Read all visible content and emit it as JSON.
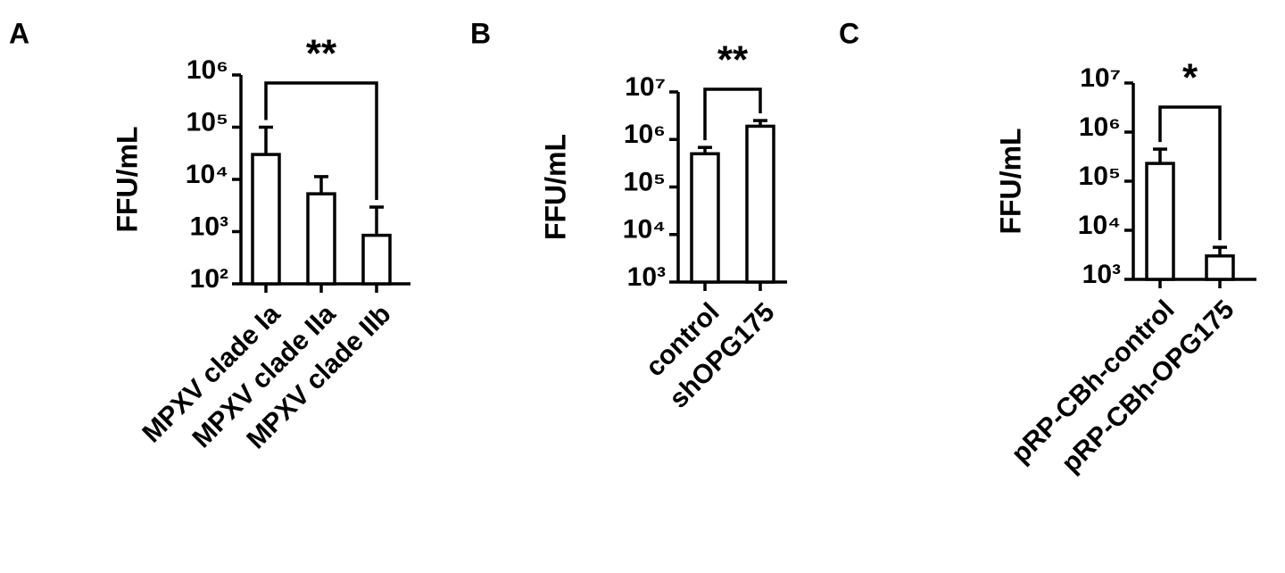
{
  "chart_data": [
    {
      "type": "bar",
      "panel": "A",
      "ylabel": "FFU/mL",
      "log_scale": true,
      "color": "#ffffff",
      "categories": [
        "MPXV clade Ia",
        "MPXV clade IIa",
        "MPXV clade IIb"
      ],
      "values": [
        30000,
        5300,
        850
      ],
      "errors": [
        70000,
        6000,
        2100
      ],
      "ylim": [
        100,
        1000000
      ],
      "yticks": [
        {
          "value": 100,
          "label": "10²"
        },
        {
          "value": 1000,
          "label": "10³"
        },
        {
          "value": 10000,
          "label": "10⁴"
        },
        {
          "value": 100000,
          "label": "10⁵"
        },
        {
          "value": 1000000,
          "label": "10⁶"
        }
      ],
      "bracket": {
        "label": "**",
        "categories": [
          0,
          2
        ]
      }
    },
    {
      "type": "bar",
      "panel": "B",
      "ylabel": "FFU/mL",
      "log_scale": true,
      "color": "#ffffff",
      "categories": [
        "control",
        "shOPG175"
      ],
      "values": [
        500000,
        1900000
      ],
      "errors": [
        180000,
        600000
      ],
      "ylim": [
        1000,
        10000000
      ],
      "yticks": [
        {
          "value": 1000,
          "label": "10³"
        },
        {
          "value": 10000,
          "label": "10⁴"
        },
        {
          "value": 100000,
          "label": "10⁵"
        },
        {
          "value": 1000000,
          "label": "10⁶"
        },
        {
          "value": 10000000,
          "label": "10⁷"
        }
      ],
      "bracket": {
        "label": "**",
        "categories": [
          0,
          1
        ]
      }
    },
    {
      "type": "bar",
      "panel": "C",
      "ylabel": "FFU/mL",
      "log_scale": true,
      "color": "#ffffff",
      "categories": [
        "pRP-CBh-control",
        "pRP-CBh-OPG175"
      ],
      "values": [
        230000,
        3000
      ],
      "errors": [
        220000,
        1500
      ],
      "ylim": [
        1000,
        10000000
      ],
      "yticks": [
        {
          "value": 1000,
          "label": "10³"
        },
        {
          "value": 10000,
          "label": "10⁴"
        },
        {
          "value": 100000,
          "label": "10⁵"
        },
        {
          "value": 1000000,
          "label": "10⁶"
        },
        {
          "value": 10000000,
          "label": "10⁷"
        }
      ],
      "bracket": {
        "label": "*",
        "categories": [
          0,
          1
        ]
      }
    }
  ]
}
